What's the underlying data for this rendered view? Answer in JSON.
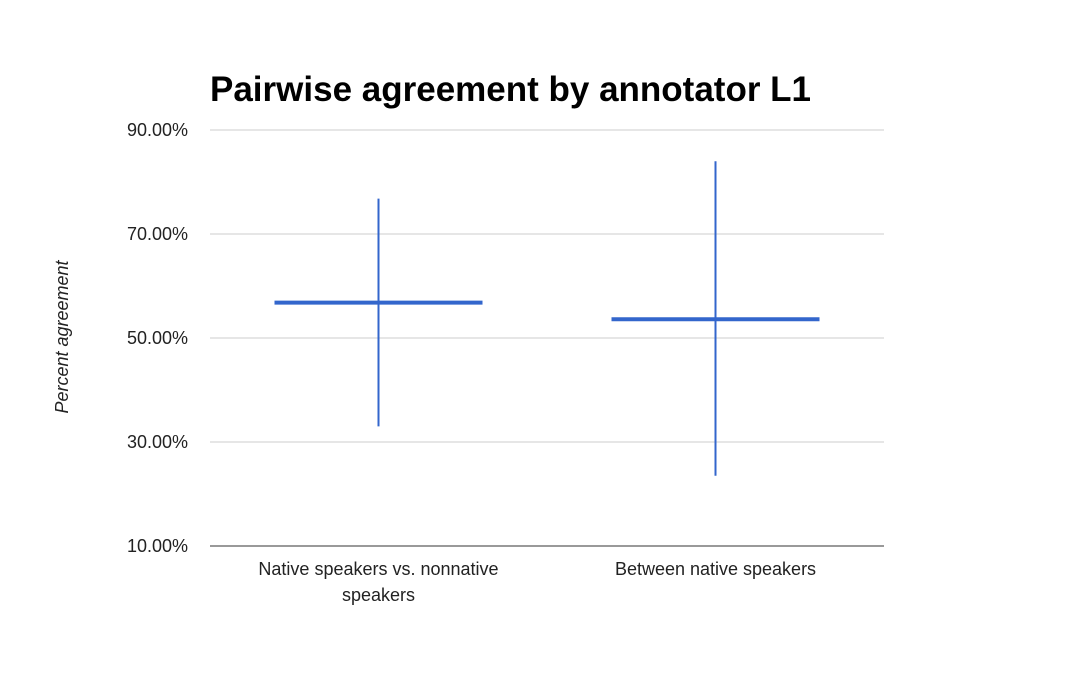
{
  "chart_data": {
    "type": "candlestick",
    "title": "Pairwise agreement by annotator L1",
    "xlabel": "",
    "ylabel": "Percent agreement",
    "ylim": [
      10,
      90
    ],
    "yticks": [
      10,
      30,
      50,
      70,
      90
    ],
    "ytick_labels": [
      "10.00%",
      "30.00%",
      "50.00%",
      "70.00%",
      "90.00%"
    ],
    "grid": true,
    "legend": "none",
    "categories": [
      "Native speakers vs. nonnative speakers",
      "Between native speakers"
    ],
    "category_label_lines": [
      [
        "Native speakers vs. nonnative",
        "speakers"
      ],
      [
        "Between native speakers"
      ]
    ],
    "series": [
      {
        "low": [
          33.0,
          23.5
        ],
        "high": [
          76.8,
          84.0
        ],
        "center": [
          56.8,
          53.6
        ]
      }
    ],
    "colors": {
      "series": "#3366cc",
      "grid": "#cccccc",
      "baseline": "#333333"
    }
  }
}
